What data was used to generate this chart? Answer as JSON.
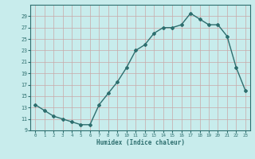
{
  "x": [
    0,
    1,
    2,
    3,
    4,
    5,
    6,
    7,
    8,
    9,
    10,
    11,
    12,
    13,
    14,
    15,
    16,
    17,
    18,
    19,
    20,
    21,
    22,
    23
  ],
  "y": [
    13.5,
    12.5,
    11.5,
    11,
    10.5,
    10,
    10,
    13.5,
    15.5,
    17.5,
    20,
    23,
    24,
    26,
    27,
    27,
    27.5,
    29.5,
    28.5,
    27.5,
    27.5,
    25.5,
    20,
    16
  ],
  "title": "",
  "xlabel": "Humidex (Indice chaleur)",
  "ylim": [
    9,
    31
  ],
  "yticks": [
    9,
    11,
    13,
    15,
    17,
    19,
    21,
    23,
    25,
    27,
    29
  ],
  "xlim": [
    -0.5,
    23.5
  ],
  "xticks": [
    0,
    1,
    2,
    3,
    4,
    5,
    6,
    7,
    8,
    9,
    10,
    11,
    12,
    13,
    14,
    15,
    16,
    17,
    18,
    19,
    20,
    21,
    22,
    23
  ],
  "line_color": "#2d6e6e",
  "bg_color": "#c8ecec",
  "grid_color": "#c8a8a8",
  "marker": "D",
  "markersize": 2.0,
  "linewidth": 1.0
}
